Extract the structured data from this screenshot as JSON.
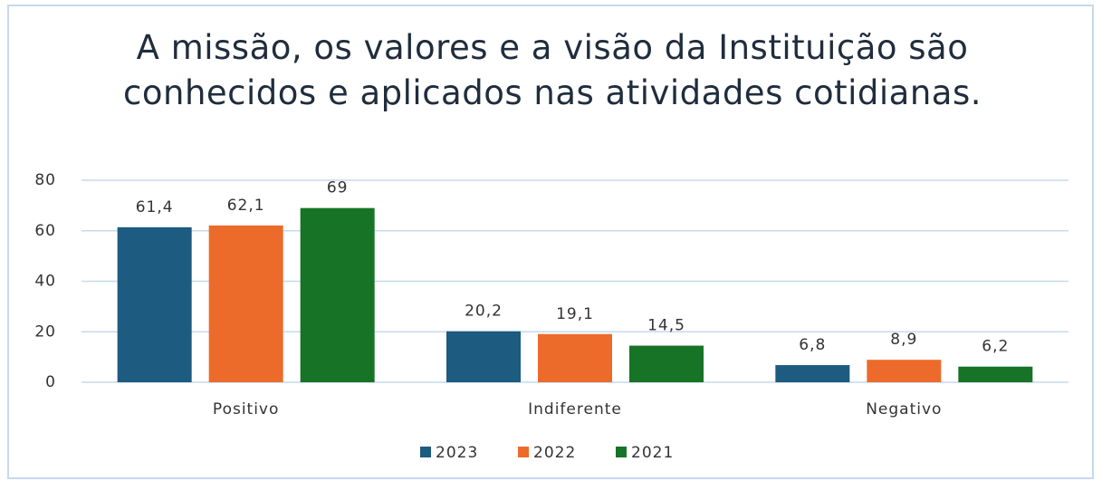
{
  "chart_data": {
    "type": "bar",
    "title": "A missão, os valores e a visão da Instituição são conhecidos e aplicados nas atividades cotidianas.",
    "categories": [
      "Positivo",
      "Indiferente",
      "Negativo"
    ],
    "series": [
      {
        "name": "2023",
        "color": "#1d5b80",
        "values": [
          61.4,
          20.2,
          6.8
        ],
        "value_labels": [
          "61,4",
          "20,2",
          "6,8"
        ]
      },
      {
        "name": "2022",
        "color": "#ec6b2b",
        "values": [
          62.1,
          19.1,
          8.9
        ],
        "value_labels": [
          "62,1",
          "19,1",
          "8,9"
        ]
      },
      {
        "name": "2021",
        "color": "#177326",
        "values": [
          69,
          14.5,
          6.2
        ],
        "value_labels": [
          "69",
          "14,5",
          "6,2"
        ]
      }
    ],
    "ylim": [
      0,
      80
    ],
    "yticks": [
      0,
      20,
      40,
      60,
      80
    ],
    "grid": true,
    "legend": "bottom"
  }
}
